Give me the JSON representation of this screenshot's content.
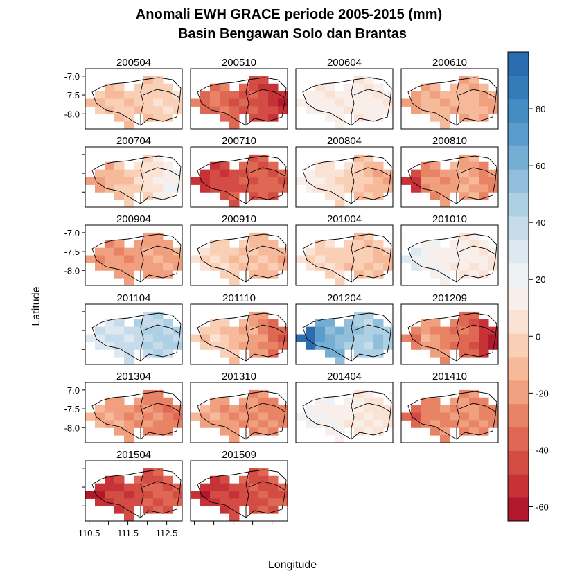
{
  "chart_data": {
    "type": "heatmap",
    "title": "Anomali EWH GRACE periode 2005-2015 (mm)",
    "subtitle": "Basin Bengawan Solo dan Brantas",
    "xlabel": "Longitude",
    "ylabel": "Latitude",
    "x_ticks": [
      110.5,
      111.5,
      112.5
    ],
    "x_tick_labels": [
      "110.5",
      "111.5",
      "112.5"
    ],
    "y_ticks": [
      -7.0,
      -7.5,
      -8.0
    ],
    "y_tick_labels": [
      "-7.0",
      "-7.5",
      "-8.0"
    ],
    "xlim": [
      110.4,
      112.9
    ],
    "ylim": [
      -8.4,
      -6.8
    ],
    "colorbar": {
      "min": -65,
      "max": 100,
      "step": 8.25,
      "ticks": [
        80,
        60,
        40,
        20,
        0,
        -20,
        -40,
        -60
      ],
      "tick_labels": [
        "80",
        "60",
        "40",
        "20",
        "0",
        "-20",
        "-40",
        "-60"
      ]
    },
    "panels": [
      {
        "label": "200504",
        "mean": -5,
        "gradient": 5,
        "edge": 0
      },
      {
        "label": "200510",
        "mean": -38,
        "gradient": -12,
        "edge": -8
      },
      {
        "label": "200604",
        "mean": 13,
        "gradient": 0,
        "edge": 0
      },
      {
        "label": "200610",
        "mean": -12,
        "gradient": 0,
        "edge": -8
      },
      {
        "label": "200704",
        "mean": -2,
        "gradient": 20,
        "edge": 0
      },
      {
        "label": "200710",
        "mean": -42,
        "gradient": 8,
        "edge": -5
      },
      {
        "label": "200804",
        "mean": 0,
        "gradient": -15,
        "edge": 0
      },
      {
        "label": "200810",
        "mean": -20,
        "gradient": 8,
        "edge": -25
      },
      {
        "label": "200904",
        "mean": -20,
        "gradient": 3,
        "edge": 0
      },
      {
        "label": "200910",
        "mean": -5,
        "gradient": -8,
        "edge": 0
      },
      {
        "label": "201004",
        "mean": -3,
        "gradient": -6,
        "edge": 0
      },
      {
        "label": "201010",
        "mean": 14,
        "gradient": -8,
        "edge": 6
      },
      {
        "label": "201104",
        "mean": 38,
        "gradient": 8,
        "edge": 0
      },
      {
        "label": "201110",
        "mean": -12,
        "gradient": -22,
        "edge": -12
      },
      {
        "label": "201204",
        "mean": 55,
        "gradient": -22,
        "edge": 28
      },
      {
        "label": "201209",
        "mean": -28,
        "gradient": -20,
        "edge": -18
      },
      {
        "label": "201304",
        "mean": -22,
        "gradient": -8,
        "edge": 0
      },
      {
        "label": "201310",
        "mean": -22,
        "gradient": -5,
        "edge": 0
      },
      {
        "label": "201404",
        "mean": 13,
        "gradient": -8,
        "edge": 0
      },
      {
        "label": "201410",
        "mean": -25,
        "gradient": 5,
        "edge": -12
      },
      {
        "label": "201504",
        "mean": -45,
        "gradient": 10,
        "edge": -5
      },
      {
        "label": "201509",
        "mean": -45,
        "gradient": 8,
        "edge": -5
      }
    ],
    "palette": [
      "#b2182b",
      "#c63237",
      "#d44d45",
      "#de6853",
      "#e88366",
      "#f09f7f",
      "#f6b99a",
      "#f9cfb6",
      "#fae3d5",
      "#f8efeb",
      "#eef2f4",
      "#dde9f0",
      "#c7dcea",
      "#add0e4",
      "#91bfdb",
      "#74aed3",
      "#5a9ccb",
      "#448cc2",
      "#347cb9",
      "#2b6cb0"
    ],
    "grid": false,
    "legend": "colorbar-right"
  }
}
